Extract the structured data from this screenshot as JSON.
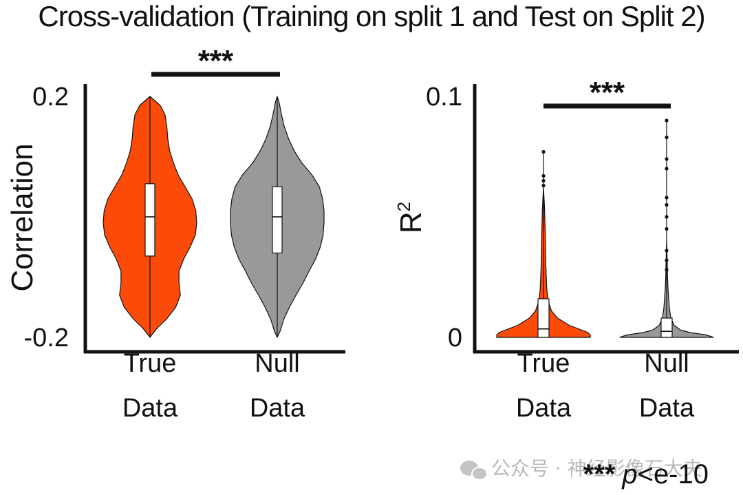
{
  "title": "Cross-validation (Training on split 1 and Test on Split 2)",
  "footnote": {
    "stars": "***",
    "p": "p",
    "rest": "<e-10"
  },
  "watermark": {
    "text": "公众号 · 神经影像石大夫",
    "icon": "wechat-icon"
  },
  "colors": {
    "true_data": "#fc4b08",
    "null_data": "#999999",
    "line": "#111111"
  },
  "chart_data": [
    {
      "type": "violin",
      "ylabel": "Correlation",
      "ylim": [
        -0.2,
        0.2
      ],
      "yticks": [
        {
          "value": 0.2,
          "label": "0.2"
        },
        {
          "value": -0.2,
          "label": "-0.2"
        }
      ],
      "significance": "***",
      "groups": [
        {
          "label_lines": [
            "True",
            "Data"
          ],
          "color": "#fc4b08",
          "min": -0.2,
          "max": 0.2,
          "q1": -0.065,
          "median": 0.0,
          "q3": 0.055,
          "density": [
            [
              -0.2,
              0.0
            ],
            [
              -0.185,
              0.15
            ],
            [
              -0.17,
              0.35
            ],
            [
              -0.15,
              0.55
            ],
            [
              -0.13,
              0.65
            ],
            [
              -0.11,
              0.62
            ],
            [
              -0.09,
              0.62
            ],
            [
              -0.07,
              0.72
            ],
            [
              -0.05,
              0.86
            ],
            [
              -0.03,
              0.97
            ],
            [
              -0.01,
              1.0
            ],
            [
              0.01,
              0.98
            ],
            [
              0.03,
              0.9
            ],
            [
              0.05,
              0.75
            ],
            [
              0.07,
              0.6
            ],
            [
              0.09,
              0.5
            ],
            [
              0.11,
              0.42
            ],
            [
              0.13,
              0.38
            ],
            [
              0.15,
              0.36
            ],
            [
              0.17,
              0.32
            ],
            [
              0.185,
              0.22
            ],
            [
              0.2,
              0.0
            ]
          ]
        },
        {
          "label_lines": [
            "Null",
            "Data"
          ],
          "color": "#999999",
          "min": -0.2,
          "max": 0.2,
          "q1": -0.06,
          "median": 0.0,
          "q3": 0.05,
          "density": [
            [
              -0.2,
              0.0
            ],
            [
              -0.19,
              0.06
            ],
            [
              -0.17,
              0.14
            ],
            [
              -0.15,
              0.26
            ],
            [
              -0.13,
              0.4
            ],
            [
              -0.11,
              0.55
            ],
            [
              -0.09,
              0.68
            ],
            [
              -0.07,
              0.82
            ],
            [
              -0.05,
              0.92
            ],
            [
              -0.03,
              0.98
            ],
            [
              -0.01,
              1.0
            ],
            [
              0.01,
              1.0
            ],
            [
              0.03,
              0.97
            ],
            [
              0.05,
              0.9
            ],
            [
              0.07,
              0.74
            ],
            [
              0.09,
              0.52
            ],
            [
              0.11,
              0.36
            ],
            [
              0.13,
              0.24
            ],
            [
              0.15,
              0.15
            ],
            [
              0.17,
              0.09
            ],
            [
              0.19,
              0.04
            ],
            [
              0.2,
              0.0
            ]
          ]
        }
      ]
    },
    {
      "type": "violin",
      "ylabel": "R",
      "ylabel_sup": "2",
      "ylim": [
        0,
        0.1
      ],
      "yticks": [
        {
          "value": 0.1,
          "label": "0.1"
        },
        {
          "value": 0,
          "label": "0"
        }
      ],
      "significance": "***",
      "groups": [
        {
          "label_lines": [
            "True",
            "Data"
          ],
          "color": "#fc4b08",
          "min": 0.0,
          "max": 0.077,
          "q1": 0.0,
          "median": 0.0035,
          "q3": 0.016,
          "density": [
            [
              0.0,
              1.0
            ],
            [
              0.001,
              1.0
            ],
            [
              0.002,
              0.95
            ],
            [
              0.003,
              0.82
            ],
            [
              0.005,
              0.55
            ],
            [
              0.008,
              0.3
            ],
            [
              0.011,
              0.17
            ],
            [
              0.015,
              0.1
            ],
            [
              0.02,
              0.07
            ],
            [
              0.03,
              0.05
            ],
            [
              0.045,
              0.035
            ],
            [
              0.055,
              0.02
            ],
            [
              0.062,
              0.0
            ]
          ],
          "outliers": [
            0.063,
            0.065,
            0.067,
            0.077
          ]
        },
        {
          "label_lines": [
            "Null",
            "Data"
          ],
          "color": "#999999",
          "min": 0.0,
          "max": 0.09,
          "q1": 0.0,
          "median": 0.0025,
          "q3": 0.008,
          "density": [
            [
              0.0,
              1.0
            ],
            [
              0.001,
              0.85
            ],
            [
              0.002,
              0.5
            ],
            [
              0.003,
              0.3
            ],
            [
              0.005,
              0.16
            ],
            [
              0.008,
              0.09
            ],
            [
              0.012,
              0.06
            ],
            [
              0.016,
              0.045
            ],
            [
              0.02,
              0.03
            ],
            [
              0.025,
              0.02
            ],
            [
              0.035,
              0.008
            ],
            [
              0.04,
              0.0
            ]
          ],
          "outliers": [
            0.028,
            0.032,
            0.036,
            0.045,
            0.05,
            0.055,
            0.058,
            0.07,
            0.074,
            0.083,
            0.09
          ]
        }
      ]
    }
  ]
}
